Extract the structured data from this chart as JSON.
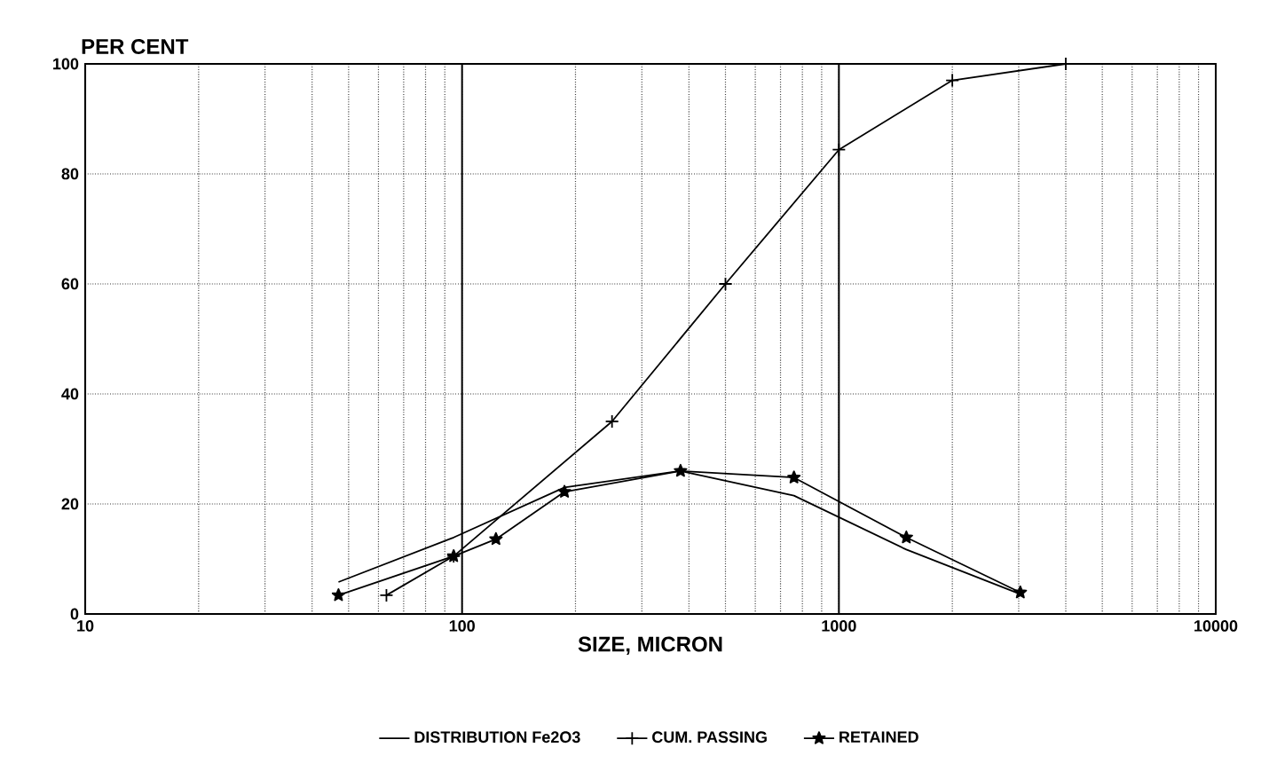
{
  "chart_data": {
    "type": "line",
    "xlabel": "SIZE, MICRON",
    "ylabel": "PER CENT",
    "log": "x",
    "grid": true,
    "legend": "bottom",
    "line_style": "solid",
    "xlim": [
      10,
      10000
    ],
    "xticks": [
      10,
      100,
      1000,
      10000
    ],
    "ylim": [
      0,
      100
    ],
    "yticks": [
      0,
      20,
      40,
      60,
      80,
      100
    ],
    "series": [
      {
        "name": "DISTRIBUTION Fe2O3",
        "color": "#000000",
        "marker": "none",
        "x": [
          47,
          95,
          187,
          380,
          760,
          1510,
          3030
        ],
        "values": [
          5.8,
          13.9,
          23,
          26,
          21.5,
          11.7,
          3.6
        ]
      },
      {
        "name": "CUM. PASSING",
        "color": "#000000",
        "marker": "cross",
        "x": [
          63,
          95,
          250,
          500,
          1000,
          2000,
          4000
        ],
        "values": [
          3.4,
          10.5,
          35,
          60,
          84.4,
          97,
          100
        ]
      },
      {
        "name": "RETAINED",
        "color": "#000000",
        "marker": "star",
        "x": [
          47,
          95,
          123,
          187,
          380,
          760,
          1510,
          3030
        ],
        "values": [
          3.4,
          10.5,
          13.6,
          22.2,
          26,
          24.8,
          13.9,
          3.9
        ]
      }
    ]
  }
}
